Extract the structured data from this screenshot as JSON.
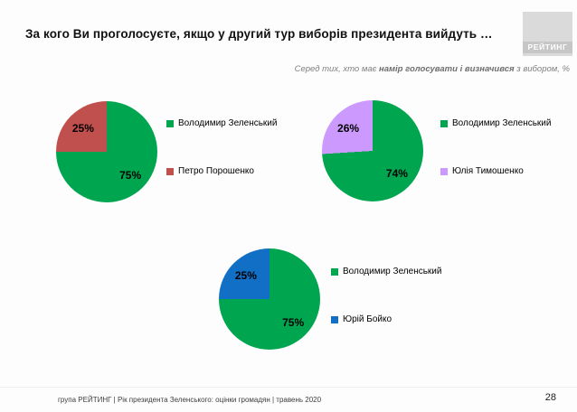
{
  "page": {
    "title": "За кого Ви проголосуєте, якщо у другий тур виборів президента вийдуть …",
    "subtitle_prefix": "Серед тих, хто має ",
    "subtitle_bold": "намір голосувати і визначився",
    "subtitle_suffix": " з вибором, %",
    "logo_text": "РЕЙТИНГ",
    "footer_text": "група РЕЙТИНГ |  Рік президента Зеленського: оцінки громадян | травень 2020",
    "page_number": "28"
  },
  "colors": {
    "green": "#00A64F",
    "red": "#C0504D",
    "purple": "#CC99FF",
    "blue": "#1170C6",
    "subtitle_gray": "#7F7F7F",
    "logo_bg": "#DADADA"
  },
  "chart_data": [
    {
      "type": "pie",
      "units": "%",
      "legend_position": "right",
      "slices": [
        {
          "name": "Володимир Зеленський",
          "value": 75,
          "label": "75%",
          "color": "#00A64F"
        },
        {
          "name": "Петро Порошенко",
          "value": 25,
          "label": "25%",
          "color": "#C0504D"
        }
      ]
    },
    {
      "type": "pie",
      "units": "%",
      "legend_position": "right",
      "slices": [
        {
          "name": "Володимир Зеленський",
          "value": 74,
          "label": "74%",
          "color": "#00A64F"
        },
        {
          "name": "Юлія Тимошенко",
          "value": 26,
          "label": "26%",
          "color": "#CC99FF"
        }
      ]
    },
    {
      "type": "pie",
      "units": "%",
      "legend_position": "right",
      "slices": [
        {
          "name": "Володимир Зеленський",
          "value": 75,
          "label": "75%",
          "color": "#00A64F"
        },
        {
          "name": "Юрій Бойко",
          "value": 25,
          "label": "25%",
          "color": "#1170C6"
        }
      ]
    }
  ]
}
